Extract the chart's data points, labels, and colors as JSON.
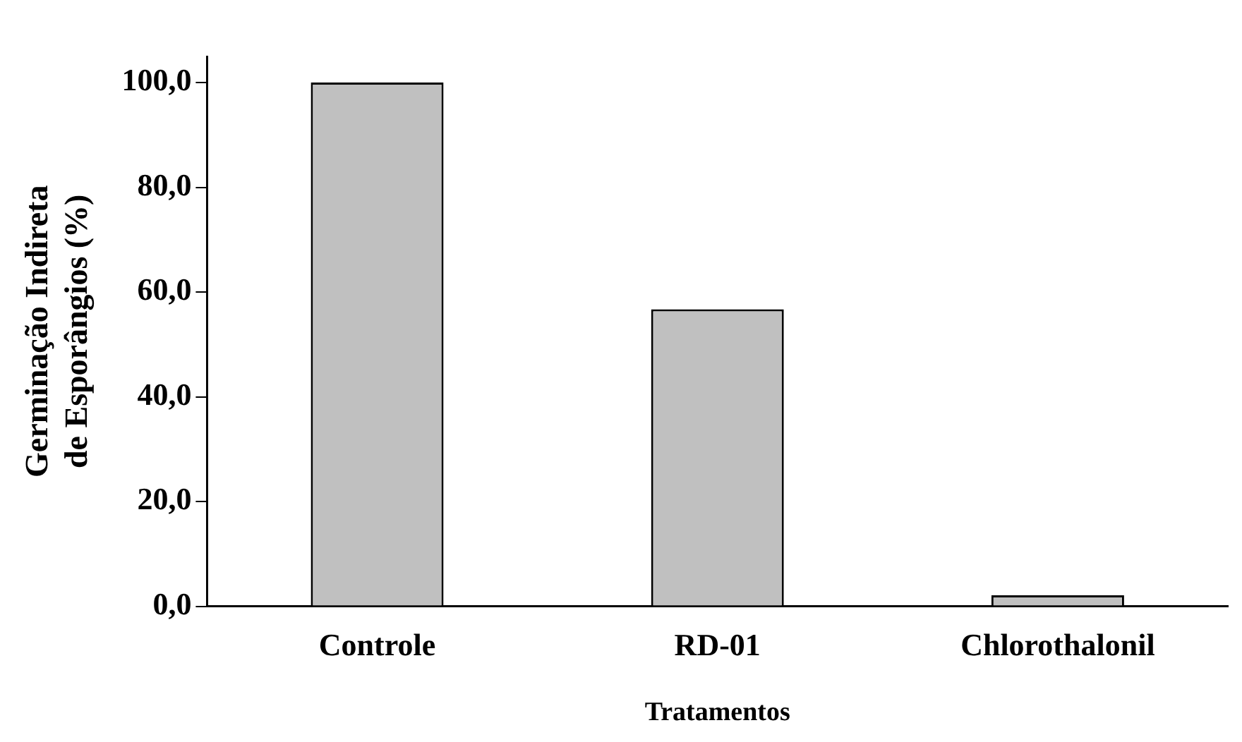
{
  "chart_data": {
    "type": "bar",
    "xlabel": "Tratamentos",
    "ylabel": "Germinação Indireta de Esporângios (%)",
    "categories": [
      "Controle",
      "RD-01",
      "Chlorothalonil"
    ],
    "values": [
      100,
      56.7,
      2.1
    ],
    "color": "#c0c0c0",
    "ylim": [
      0,
      105
    ],
    "yticks": [
      {
        "value": 0,
        "label": "0,0"
      },
      {
        "value": 20,
        "label": "20,0"
      },
      {
        "value": 40,
        "label": "40,0"
      },
      {
        "value": 60,
        "label": "60,0"
      },
      {
        "value": 80,
        "label": "80,0"
      },
      {
        "value": 100,
        "label": "100,0"
      }
    ],
    "grid": false,
    "legend": false
  }
}
